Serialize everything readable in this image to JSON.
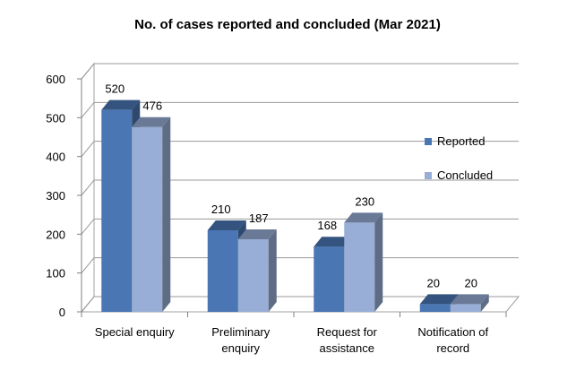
{
  "chart_data": {
    "type": "bar",
    "title": "No. of cases reported and concluded (Mar 2021)",
    "categories": [
      [
        "Special enquiry"
      ],
      [
        "Preliminary",
        "enquiry"
      ],
      [
        "Request for",
        "assistance"
      ],
      [
        "Notification of",
        "record"
      ]
    ],
    "series": [
      {
        "name": "Reported",
        "values": [
          520,
          210,
          168,
          20
        ],
        "color": "#4a76b4"
      },
      {
        "name": "Concluded",
        "values": [
          476,
          187,
          230,
          20
        ],
        "color": "#98aed6"
      }
    ],
    "ylim": [
      0,
      600
    ],
    "yticks": [
      0,
      100,
      200,
      300,
      400,
      500,
      600
    ],
    "grid": true,
    "legend_position": "right",
    "style": "3d-clustered-column"
  }
}
